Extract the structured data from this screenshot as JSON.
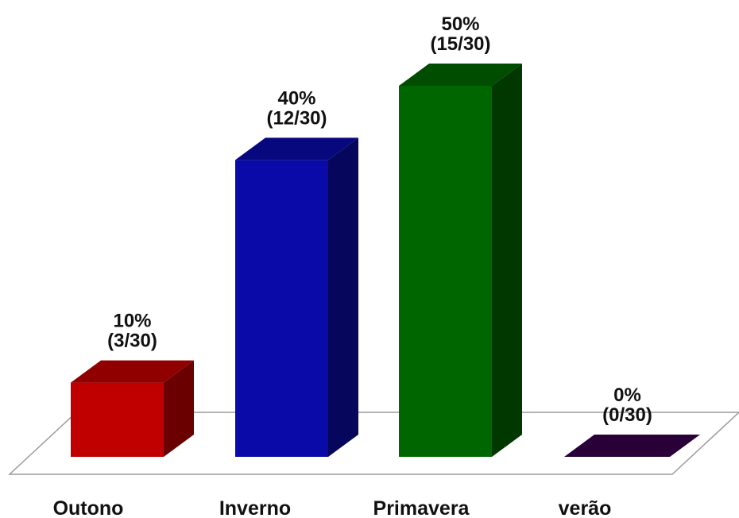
{
  "chart_data": {
    "type": "bar",
    "style": "3d",
    "categories": [
      "Outono",
      "Inverno",
      "Primavera",
      "verão"
    ],
    "values": [
      10,
      40,
      50,
      0
    ],
    "ratio_labels": [
      "(3/30)",
      "(12/30)",
      "(15/30)",
      "(0/30)"
    ],
    "value_labels": [
      "10%",
      "40%",
      "50%",
      "0%"
    ],
    "colors": [
      "#c00000",
      "#0a0aa8",
      "#006600",
      "#2a0038"
    ],
    "ylim": [
      0,
      50
    ],
    "grid": false,
    "legend": "none",
    "title": "",
    "xlabel": "",
    "ylabel": ""
  }
}
